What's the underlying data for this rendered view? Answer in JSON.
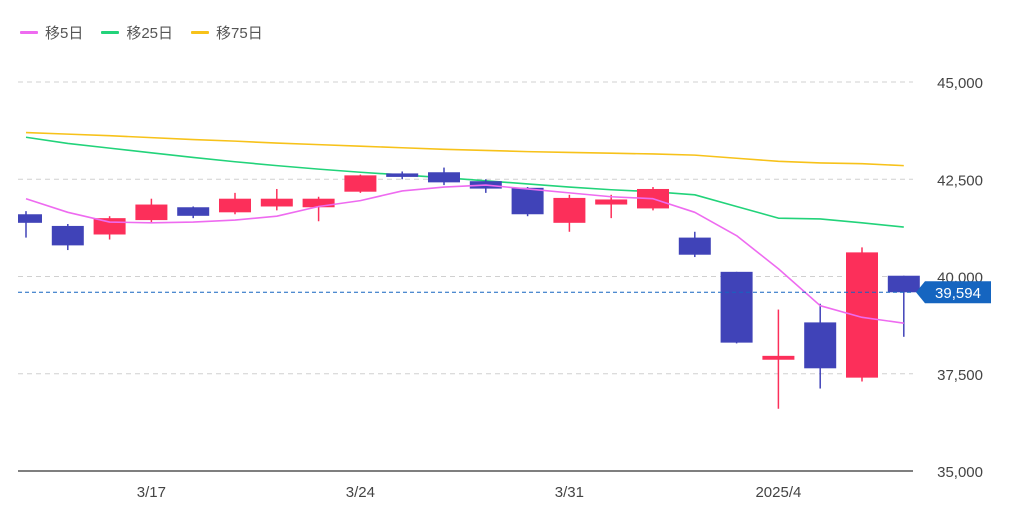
{
  "chart_data": {
    "type": "candlestick",
    "legend": [
      {
        "name": "移5日",
        "color": "#ee6bf0"
      },
      {
        "name": "移25日",
        "color": "#22d37a"
      },
      {
        "name": "移75日",
        "color": "#f7c21a"
      }
    ],
    "y_ticks": [
      {
        "value": 45000,
        "label": "45,000"
      },
      {
        "value": 42500,
        "label": "42,500"
      },
      {
        "value": 40000,
        "label": "40,000"
      },
      {
        "value": 37500,
        "label": "37,500"
      },
      {
        "value": 35000,
        "label": "35,000"
      }
    ],
    "ylim": [
      35000,
      45800
    ],
    "x_labels": [
      {
        "index": 3,
        "label": "3/17"
      },
      {
        "index": 8,
        "label": "3/24"
      },
      {
        "index": 13,
        "label": "3/31"
      },
      {
        "index": 18,
        "label": "2025/4"
      }
    ],
    "candles": [
      {
        "open": 41600,
        "high": 41680,
        "low": 41000,
        "close": 41380
      },
      {
        "open": 41300,
        "high": 41350,
        "low": 40680,
        "close": 40800
      },
      {
        "open": 41080,
        "high": 41550,
        "low": 40950,
        "close": 41500
      },
      {
        "open": 41450,
        "high": 42000,
        "low": 41400,
        "close": 41850
      },
      {
        "open": 41780,
        "high": 41800,
        "low": 41500,
        "close": 41560
      },
      {
        "open": 41650,
        "high": 42150,
        "low": 41600,
        "close": 42000
      },
      {
        "open": 41800,
        "high": 42250,
        "low": 41700,
        "close": 42000
      },
      {
        "open": 41780,
        "high": 42050,
        "low": 41420,
        "close": 42000
      },
      {
        "open": 42180,
        "high": 42620,
        "low": 42150,
        "close": 42600
      },
      {
        "open": 42650,
        "high": 42700,
        "low": 42500,
        "close": 42560
      },
      {
        "open": 42680,
        "high": 42800,
        "low": 42350,
        "close": 42420
      },
      {
        "open": 42450,
        "high": 42500,
        "low": 42150,
        "close": 42260
      },
      {
        "open": 42280,
        "high": 42300,
        "low": 41550,
        "close": 41600
      },
      {
        "open": 41380,
        "high": 42100,
        "low": 41150,
        "close": 42020
      },
      {
        "open": 41850,
        "high": 42100,
        "low": 41500,
        "close": 41980
      },
      {
        "open": 41750,
        "high": 42300,
        "low": 41700,
        "close": 42250
      },
      {
        "open": 41000,
        "high": 41150,
        "low": 40500,
        "close": 40560
      },
      {
        "open": 40120,
        "high": 40120,
        "low": 38280,
        "close": 38300
      },
      {
        "open": 37860,
        "high": 39150,
        "low": 36600,
        "close": 37960
      },
      {
        "open": 38820,
        "high": 39300,
        "low": 37120,
        "close": 37640
      },
      {
        "open": 37400,
        "high": 40750,
        "low": 37300,
        "close": 40620
      },
      {
        "open": 40020,
        "high": 40020,
        "low": 38450,
        "close": 39594
      }
    ],
    "ma5": [
      42000,
      41650,
      41400,
      41380,
      41400,
      41450,
      41550,
      41800,
      41950,
      42200,
      42300,
      42350,
      42250,
      42150,
      42050,
      42000,
      41650,
      41050,
      40200,
      39250,
      38950,
      38800
    ],
    "ma25": [
      43580,
      43420,
      43300,
      43180,
      43060,
      42950,
      42850,
      42760,
      42680,
      42610,
      42540,
      42460,
      42380,
      42300,
      42230,
      42180,
      42100,
      41800,
      41500,
      41480,
      41380,
      41270
    ],
    "ma75": [
      43700,
      43660,
      43620,
      43570,
      43520,
      43480,
      43430,
      43390,
      43350,
      43310,
      43270,
      43240,
      43210,
      43190,
      43170,
      43150,
      43120,
      43040,
      42960,
      42920,
      42900,
      42850
    ],
    "current_price": {
      "value": 39594,
      "label": "39,594"
    },
    "colors": {
      "up": "#fc2f5a",
      "down": "#4043b8",
      "price_tag": "#1565c0",
      "grid": "#d0d0d0"
    }
  }
}
